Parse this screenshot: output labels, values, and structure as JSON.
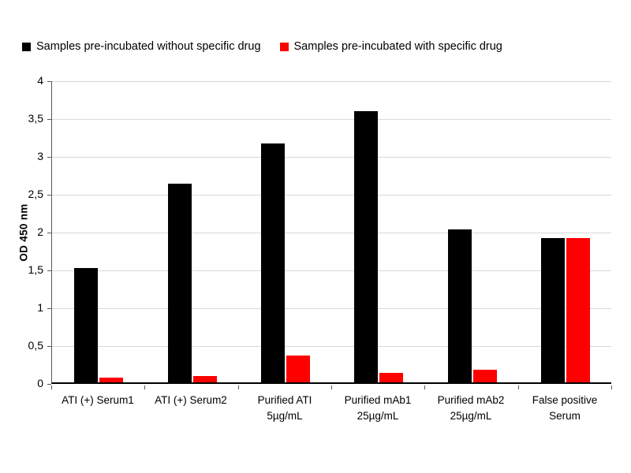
{
  "chart_data": {
    "type": "bar",
    "title": "",
    "xlabel": "",
    "ylabel": "OD 450 nm",
    "ylim": [
      0,
      4
    ],
    "ytick_step": 0.5,
    "ytick_labels": [
      "0",
      "0,5",
      "1",
      "1,5",
      "2",
      "2,5",
      "3",
      "3,5",
      "4"
    ],
    "grid": true,
    "legend_position": "top",
    "categories": [
      [
        "ATI (+) Serum1"
      ],
      [
        "ATI (+) Serum2"
      ],
      [
        "Purified ATI",
        "5µg/mL"
      ],
      [
        "Purified mAb1",
        "25µg/mL"
      ],
      [
        "Purified mAb2",
        "25µg/mL"
      ],
      [
        "False positive",
        "Serum"
      ]
    ],
    "series": [
      {
        "name": "Samples pre-incubated without specific drug",
        "color": "#000000",
        "values": [
          1.51,
          2.63,
          3.16,
          3.58,
          2.02,
          1.91
        ]
      },
      {
        "name": "Samples pre-incubated with specific drug",
        "color": "#ff0000",
        "values": [
          0.06,
          0.08,
          0.35,
          0.13,
          0.17,
          1.91
        ]
      }
    ]
  },
  "colors": {
    "series_without_drug": "#000000",
    "series_with_drug": "#ff0000",
    "gridline": "#d9d9d9",
    "axis_line": "#595959",
    "x_axis_line": "#000000",
    "text": "#000000",
    "background": "#ffffff"
  }
}
